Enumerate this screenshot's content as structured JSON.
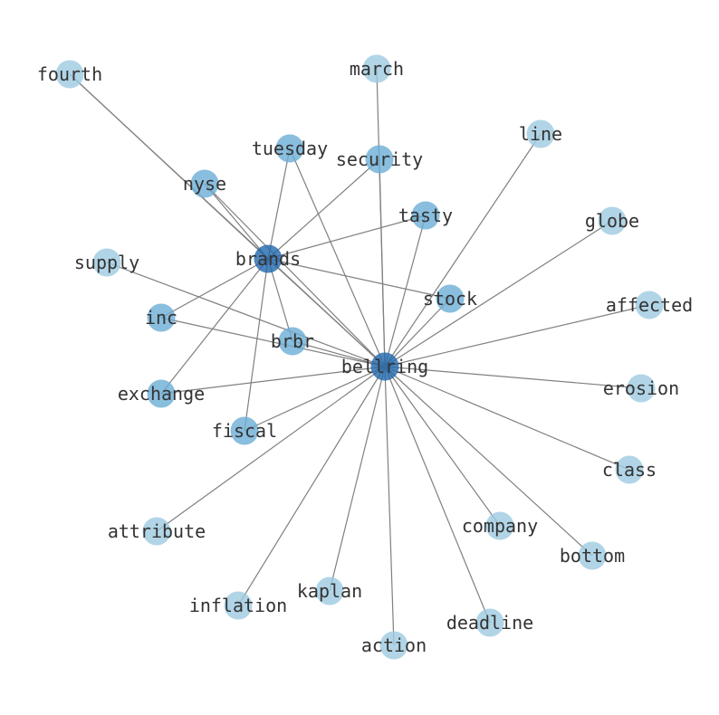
{
  "graph": {
    "colors": {
      "edge": "#808080",
      "light": "#9ecae1",
      "medium": "#6baed6",
      "dark": "#2166ac",
      "label": "#333333"
    },
    "nodes": [
      {
        "id": "fourth",
        "label": "fourth",
        "level": "light"
      },
      {
        "id": "march",
        "label": "march",
        "level": "light"
      },
      {
        "id": "line",
        "label": "line",
        "level": "light"
      },
      {
        "id": "tuesday",
        "label": "tuesday",
        "level": "medium"
      },
      {
        "id": "security",
        "label": "security",
        "level": "medium"
      },
      {
        "id": "nyse",
        "label": "nyse",
        "level": "medium"
      },
      {
        "id": "tasty",
        "label": "tasty",
        "level": "medium"
      },
      {
        "id": "globe",
        "label": "globe",
        "level": "light"
      },
      {
        "id": "supply",
        "label": "supply",
        "level": "light"
      },
      {
        "id": "brands",
        "label": "brands",
        "level": "dark"
      },
      {
        "id": "stock",
        "label": "stock",
        "level": "medium"
      },
      {
        "id": "affected",
        "label": "affected",
        "level": "light"
      },
      {
        "id": "inc",
        "label": "inc",
        "level": "medium"
      },
      {
        "id": "brbr",
        "label": "brbr",
        "level": "medium"
      },
      {
        "id": "bellring",
        "label": "bellring",
        "level": "dark"
      },
      {
        "id": "exchange",
        "label": "exchange",
        "level": "medium"
      },
      {
        "id": "erosion",
        "label": "erosion",
        "level": "light"
      },
      {
        "id": "fiscal",
        "label": "fiscal",
        "level": "medium"
      },
      {
        "id": "class",
        "label": "class",
        "level": "light"
      },
      {
        "id": "attribute",
        "label": "attribute",
        "level": "light"
      },
      {
        "id": "company",
        "label": "company",
        "level": "light"
      },
      {
        "id": "bottom",
        "label": "bottom",
        "level": "light"
      },
      {
        "id": "kaplan",
        "label": "kaplan",
        "level": "light"
      },
      {
        "id": "inflation",
        "label": "inflation",
        "level": "light"
      },
      {
        "id": "deadline",
        "label": "deadline",
        "level": "light"
      },
      {
        "id": "action",
        "label": "action",
        "level": "light"
      }
    ],
    "edges": [
      [
        "brands",
        "fourth"
      ],
      [
        "brands",
        "nyse"
      ],
      [
        "brands",
        "tuesday"
      ],
      [
        "brands",
        "security"
      ],
      [
        "brands",
        "tasty"
      ],
      [
        "brands",
        "stock"
      ],
      [
        "brands",
        "inc"
      ],
      [
        "brands",
        "exchange"
      ],
      [
        "brands",
        "fiscal"
      ],
      [
        "brands",
        "brbr"
      ],
      [
        "brands",
        "bellring"
      ],
      [
        "bellring",
        "fourth"
      ],
      [
        "bellring",
        "nyse"
      ],
      [
        "bellring",
        "march"
      ],
      [
        "bellring",
        "line"
      ],
      [
        "bellring",
        "globe"
      ],
      [
        "bellring",
        "affected"
      ],
      [
        "bellring",
        "erosion"
      ],
      [
        "bellring",
        "class"
      ],
      [
        "bellring",
        "bottom"
      ],
      [
        "bellring",
        "company"
      ],
      [
        "bellring",
        "deadline"
      ],
      [
        "bellring",
        "action"
      ],
      [
        "bellring",
        "kaplan"
      ],
      [
        "bellring",
        "inflation"
      ],
      [
        "bellring",
        "attribute"
      ],
      [
        "bellring",
        "fiscal"
      ],
      [
        "bellring",
        "exchange"
      ],
      [
        "bellring",
        "inc"
      ],
      [
        "bellring",
        "supply"
      ],
      [
        "bellring",
        "brbr"
      ],
      [
        "bellring",
        "stock"
      ],
      [
        "bellring",
        "tasty"
      ],
      [
        "bellring",
        "security"
      ],
      [
        "bellring",
        "tuesday"
      ]
    ]
  }
}
